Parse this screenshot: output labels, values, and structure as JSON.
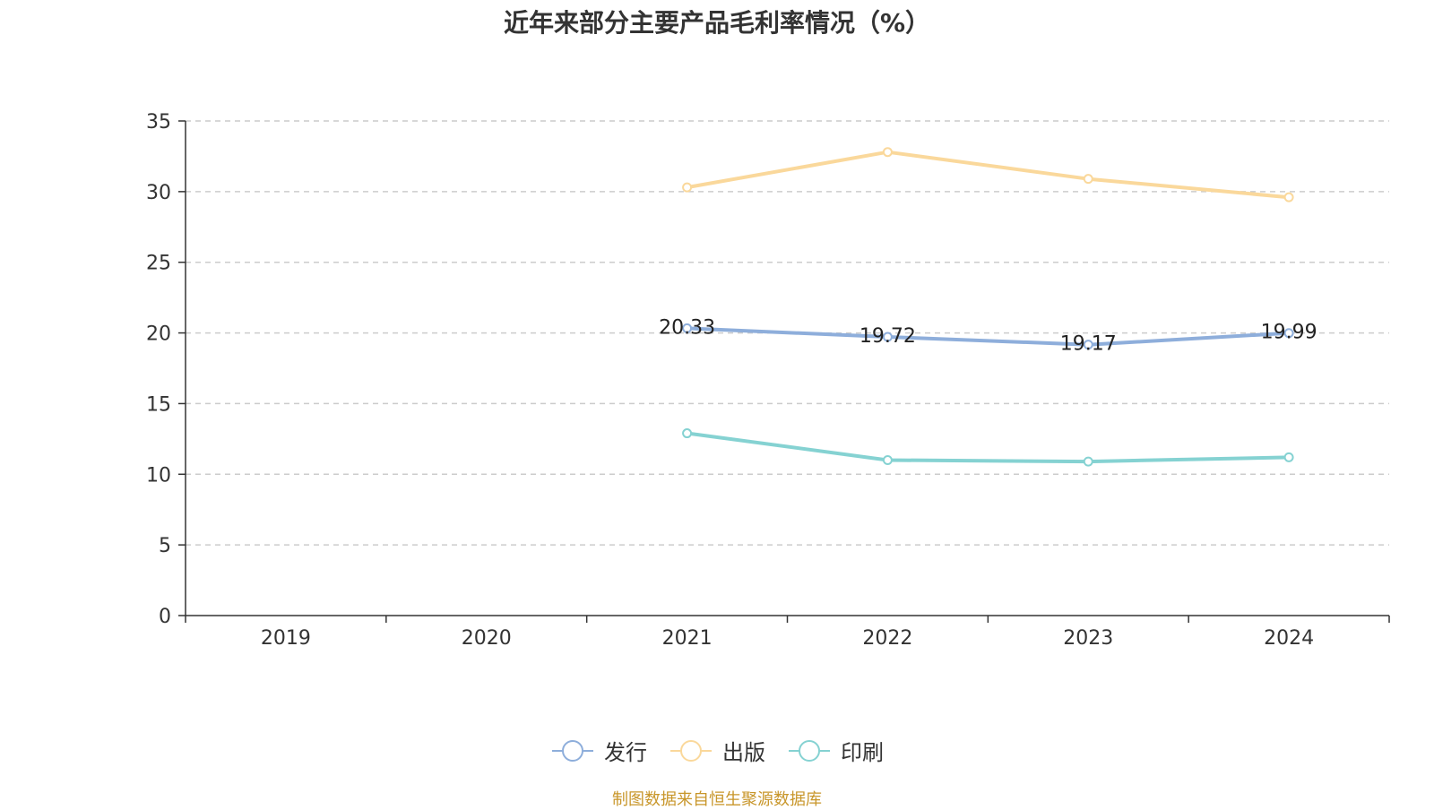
{
  "title": "近年来部分主要产品毛利率情况（%）",
  "source": "制图数据来自恒生聚源数据库",
  "chart_data": {
    "type": "line",
    "title": "近年来部分主要产品毛利率情况（%）",
    "categories": [
      "2019",
      "2020",
      "2021",
      "2022",
      "2023",
      "2024"
    ],
    "ylim": [
      0,
      35
    ],
    "yticks": [
      0,
      5,
      10,
      15,
      20,
      25,
      30,
      35
    ],
    "grid": true,
    "legend_position": "bottom",
    "series": [
      {
        "name": "发行",
        "color": "#8eaedb",
        "show_labels": true,
        "values": [
          null,
          null,
          20.33,
          19.72,
          19.17,
          19.99
        ]
      },
      {
        "name": "出版",
        "color": "#fad89b",
        "show_labels": false,
        "values": [
          null,
          null,
          30.3,
          32.8,
          30.9,
          29.6
        ]
      },
      {
        "name": "印刷",
        "color": "#85d2d2",
        "show_labels": false,
        "values": [
          null,
          null,
          12.9,
          11.0,
          10.9,
          11.2
        ]
      }
    ]
  }
}
